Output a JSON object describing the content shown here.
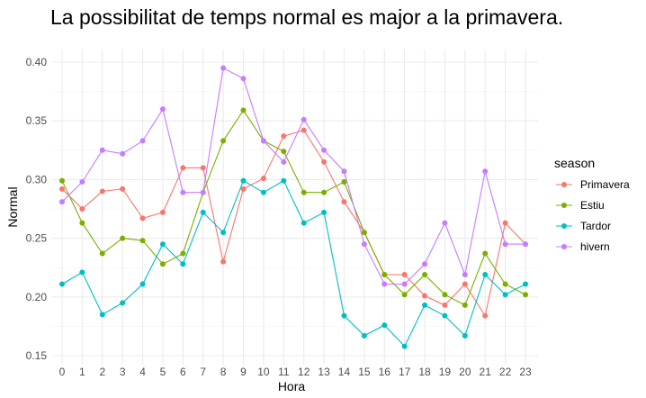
{
  "chart_data": {
    "type": "line",
    "title": "La possibilitat de temps normal es major a la primavera.",
    "xlabel": "Hora",
    "ylabel": "Normal",
    "x": [
      0,
      1,
      2,
      3,
      4,
      5,
      6,
      7,
      8,
      9,
      10,
      11,
      12,
      13,
      14,
      15,
      16,
      17,
      18,
      19,
      20,
      21,
      22,
      23
    ],
    "xlim": [
      0,
      23
    ],
    "ylim": [
      0.15,
      0.4
    ],
    "yticks": [
      "0.15",
      "0.20",
      "0.25",
      "0.30",
      "0.35",
      "0.40"
    ],
    "grid": true,
    "legend": {
      "title": "season",
      "placement": "right"
    },
    "series": [
      {
        "name": "Primavera",
        "color": "#F8766D",
        "values": [
          0.292,
          0.275,
          0.29,
          0.292,
          0.267,
          0.272,
          0.31,
          0.31,
          0.23,
          0.292,
          0.301,
          0.337,
          0.342,
          0.315,
          0.281,
          0.255,
          0.219,
          0.219,
          0.201,
          0.193,
          0.211,
          0.184,
          0.263,
          0.245
        ]
      },
      {
        "name": "Estiu",
        "color": "#7CAE00",
        "values": [
          0.299,
          0.263,
          0.237,
          0.25,
          0.248,
          0.228,
          0.237,
          0.289,
          0.333,
          0.359,
          0.333,
          0.324,
          0.289,
          0.289,
          0.298,
          0.255,
          0.219,
          0.202,
          0.219,
          0.202,
          0.193,
          0.237,
          0.211,
          0.202
        ]
      },
      {
        "name": "Tardor",
        "color": "#00BFC4",
        "values": [
          0.211,
          0.221,
          0.185,
          0.195,
          0.211,
          0.245,
          0.228,
          0.272,
          0.255,
          0.299,
          0.289,
          0.299,
          0.263,
          0.272,
          0.184,
          0.167,
          0.176,
          0.158,
          0.193,
          0.184,
          0.167,
          0.219,
          0.202,
          0.211
        ]
      },
      {
        "name": "hivern",
        "color": "#C77CFF",
        "values": [
          0.281,
          0.298,
          0.325,
          0.322,
          0.333,
          0.36,
          0.289,
          0.289,
          0.395,
          0.386,
          0.333,
          0.315,
          0.351,
          0.325,
          0.307,
          0.245,
          0.211,
          0.211,
          0.228,
          0.263,
          0.219,
          0.307,
          0.245,
          0.245
        ]
      }
    ]
  }
}
